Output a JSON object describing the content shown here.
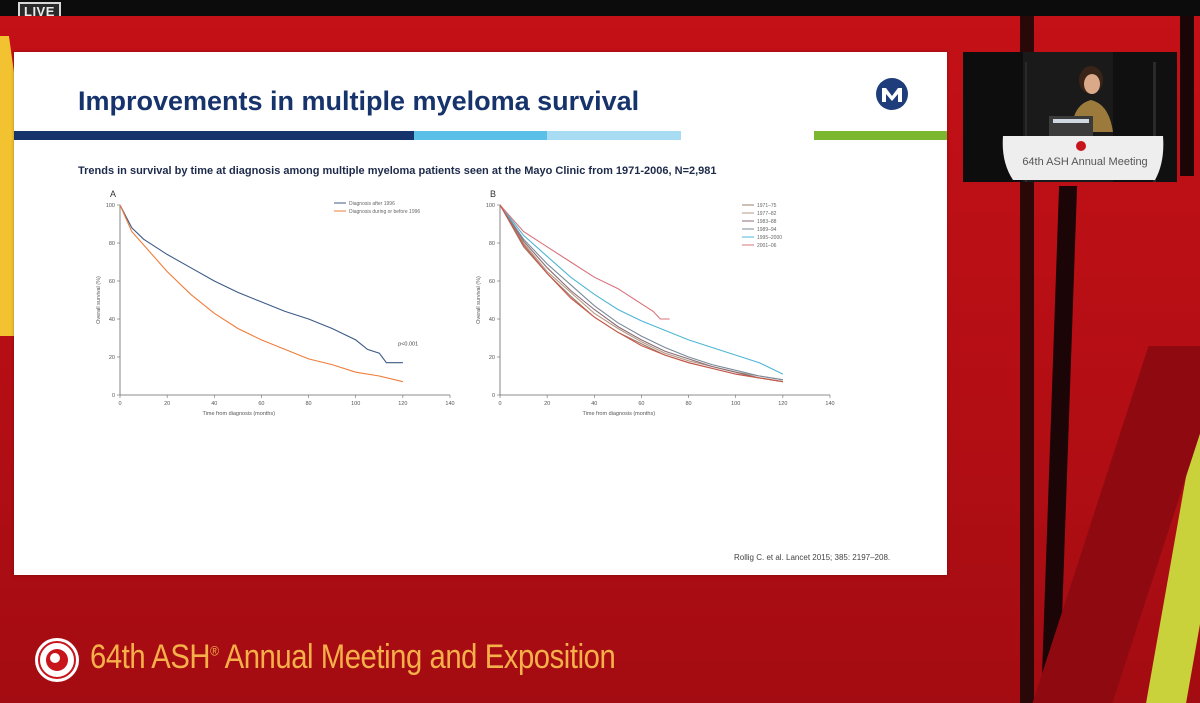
{
  "stream": {
    "live_label": "LIVE"
  },
  "slide": {
    "title": "Improvements in multiple myeloma survival",
    "subtitle": "Trends in survival by time at diagnosis among multiple myeloma patients seen at the Mayo Clinic from 1971-2006, N=2,981",
    "logo_icon": "mayo-myeloma-logo-icon",
    "citation": "Rollig C. et al. Lancet 2015; 385: 2197–208.",
    "colors": {
      "title": "#17336b",
      "bar_navy": "#17336b",
      "bar_light_blue": "#5bc0e8",
      "bar_pale_blue": "#a8dcf3",
      "bar_green": "#7cb82f"
    }
  },
  "chart_data": [
    {
      "type": "line",
      "panel_label": "A",
      "xlabel": "Time from diagnosis (months)",
      "ylabel": "Overall survival (%)",
      "xlim": [
        0,
        140
      ],
      "ylim": [
        0,
        100
      ],
      "xticks": [
        0,
        20,
        40,
        60,
        80,
        100,
        120,
        140
      ],
      "yticks": [
        0,
        20,
        40,
        60,
        80,
        100
      ],
      "annotation": "p<0.001",
      "series": [
        {
          "name": "Diagnosis after 1996",
          "color": "#3d5a88",
          "points": [
            [
              0,
              100
            ],
            [
              5,
              88
            ],
            [
              10,
              82
            ],
            [
              20,
              74
            ],
            [
              30,
              67
            ],
            [
              40,
              60
            ],
            [
              50,
              54
            ],
            [
              60,
              49
            ],
            [
              70,
              44
            ],
            [
              80,
              40
            ],
            [
              90,
              35
            ],
            [
              100,
              29
            ],
            [
              105,
              24
            ],
            [
              110,
              22
            ],
            [
              113,
              17
            ],
            [
              120,
              17
            ]
          ]
        },
        {
          "name": "Diagnosis during or before 1996",
          "color": "#ef7d3c",
          "points": [
            [
              0,
              100
            ],
            [
              5,
              86
            ],
            [
              10,
              79
            ],
            [
              20,
              65
            ],
            [
              30,
              53
            ],
            [
              40,
              43
            ],
            [
              50,
              35
            ],
            [
              60,
              29
            ],
            [
              70,
              24
            ],
            [
              80,
              19
            ],
            [
              90,
              16
            ],
            [
              100,
              12
            ],
            [
              110,
              10
            ],
            [
              120,
              7
            ]
          ]
        }
      ]
    },
    {
      "type": "line",
      "panel_label": "B",
      "xlabel": "Time from diagnosis (months)",
      "ylabel": "Overall survival (%)",
      "xlim": [
        0,
        140
      ],
      "ylim": [
        0,
        100
      ],
      "xticks": [
        0,
        20,
        40,
        60,
        80,
        100,
        120,
        140
      ],
      "yticks": [
        0,
        20,
        40,
        60,
        80,
        100
      ],
      "series": [
        {
          "name": "1971–75",
          "color": "#9a7f6b",
          "points": [
            [
              0,
              100
            ],
            [
              10,
              78
            ],
            [
              20,
              64
            ],
            [
              30,
              52
            ],
            [
              40,
              41
            ],
            [
              50,
              33
            ],
            [
              60,
              27
            ],
            [
              70,
              21
            ],
            [
              80,
              17
            ],
            [
              90,
              14
            ],
            [
              100,
              11
            ],
            [
              110,
              9
            ],
            [
              120,
              7
            ]
          ]
        },
        {
          "name": "1977–82",
          "color": "#b59a86",
          "points": [
            [
              0,
              100
            ],
            [
              10,
              80
            ],
            [
              20,
              65
            ],
            [
              30,
              54
            ],
            [
              40,
              43
            ],
            [
              50,
              35
            ],
            [
              60,
              28
            ],
            [
              70,
              22
            ],
            [
              80,
              18
            ],
            [
              90,
              15
            ],
            [
              100,
              12
            ],
            [
              110,
              10
            ],
            [
              120,
              8
            ]
          ]
        },
        {
          "name": "1983–88",
          "color": "#8a6d74",
          "points": [
            [
              0,
              100
            ],
            [
              10,
              81
            ],
            [
              20,
              67
            ],
            [
              30,
              55
            ],
            [
              40,
              45
            ],
            [
              50,
              36
            ],
            [
              60,
              29
            ],
            [
              70,
              23
            ],
            [
              80,
              19
            ],
            [
              90,
              15
            ],
            [
              100,
              12
            ],
            [
              110,
              9
            ],
            [
              120,
              7
            ]
          ]
        },
        {
          "name": "1989–94",
          "color": "#7a8a9a",
          "points": [
            [
              0,
              100
            ],
            [
              10,
              82
            ],
            [
              20,
              69
            ],
            [
              30,
              58
            ],
            [
              40,
              47
            ],
            [
              50,
              38
            ],
            [
              60,
              31
            ],
            [
              70,
              25
            ],
            [
              80,
              20
            ],
            [
              90,
              16
            ],
            [
              100,
              13
            ],
            [
              110,
              10
            ],
            [
              120,
              8
            ]
          ]
        },
        {
          "name": "1995–2000",
          "color": "#4fb6d6",
          "points": [
            [
              0,
              100
            ],
            [
              10,
              84
            ],
            [
              20,
              73
            ],
            [
              30,
              62
            ],
            [
              40,
              53
            ],
            [
              50,
              45
            ],
            [
              60,
              39
            ],
            [
              70,
              34
            ],
            [
              80,
              29
            ],
            [
              90,
              25
            ],
            [
              100,
              21
            ],
            [
              110,
              17
            ],
            [
              120,
              11
            ]
          ]
        },
        {
          "name": "2001–06",
          "color": "#d8737a",
          "points": [
            [
              0,
              100
            ],
            [
              10,
              86
            ],
            [
              20,
              78
            ],
            [
              30,
              70
            ],
            [
              40,
              62
            ],
            [
              50,
              56
            ],
            [
              55,
              52
            ],
            [
              60,
              48
            ],
            [
              65,
              44
            ],
            [
              68,
              40
            ],
            [
              72,
              40
            ]
          ]
        },
        {
          "name": "",
          "color": "#c9584a",
          "points": [
            [
              0,
              100
            ],
            [
              10,
              79
            ],
            [
              20,
              64
            ],
            [
              30,
              51
            ],
            [
              40,
              41
            ],
            [
              50,
              33
            ],
            [
              60,
              26
            ],
            [
              70,
              21
            ],
            [
              80,
              17
            ],
            [
              90,
              14
            ],
            [
              100,
              11
            ],
            [
              110,
              9
            ],
            [
              120,
              7
            ]
          ]
        }
      ]
    }
  ],
  "video": {
    "podium_text": "64th ASH Annual Meeting"
  },
  "footer": {
    "title": "64th ASH",
    "reg": "®",
    "rest": " Annual Meeting and Exposition",
    "logo_icon": "ash-society-seal-icon"
  }
}
